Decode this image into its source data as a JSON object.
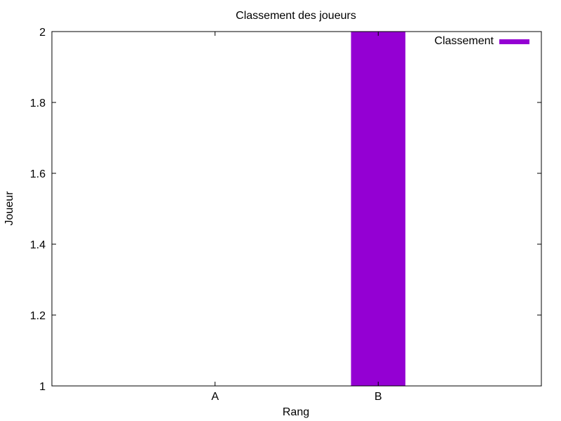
{
  "chart_data": {
    "type": "bar",
    "title": "Classement des joueurs",
    "xlabel": "Rang",
    "ylabel": "Joueur",
    "categories": [
      "A",
      "B"
    ],
    "series": [
      {
        "name": "Classement",
        "values": [
          1,
          2
        ],
        "color": "#9400D3"
      }
    ],
    "ylim": [
      1,
      2
    ],
    "yticks": [
      "1",
      "1.2",
      "1.4",
      "1.6",
      "1.8",
      "2"
    ],
    "grid": false,
    "legend_position": "top-right"
  }
}
